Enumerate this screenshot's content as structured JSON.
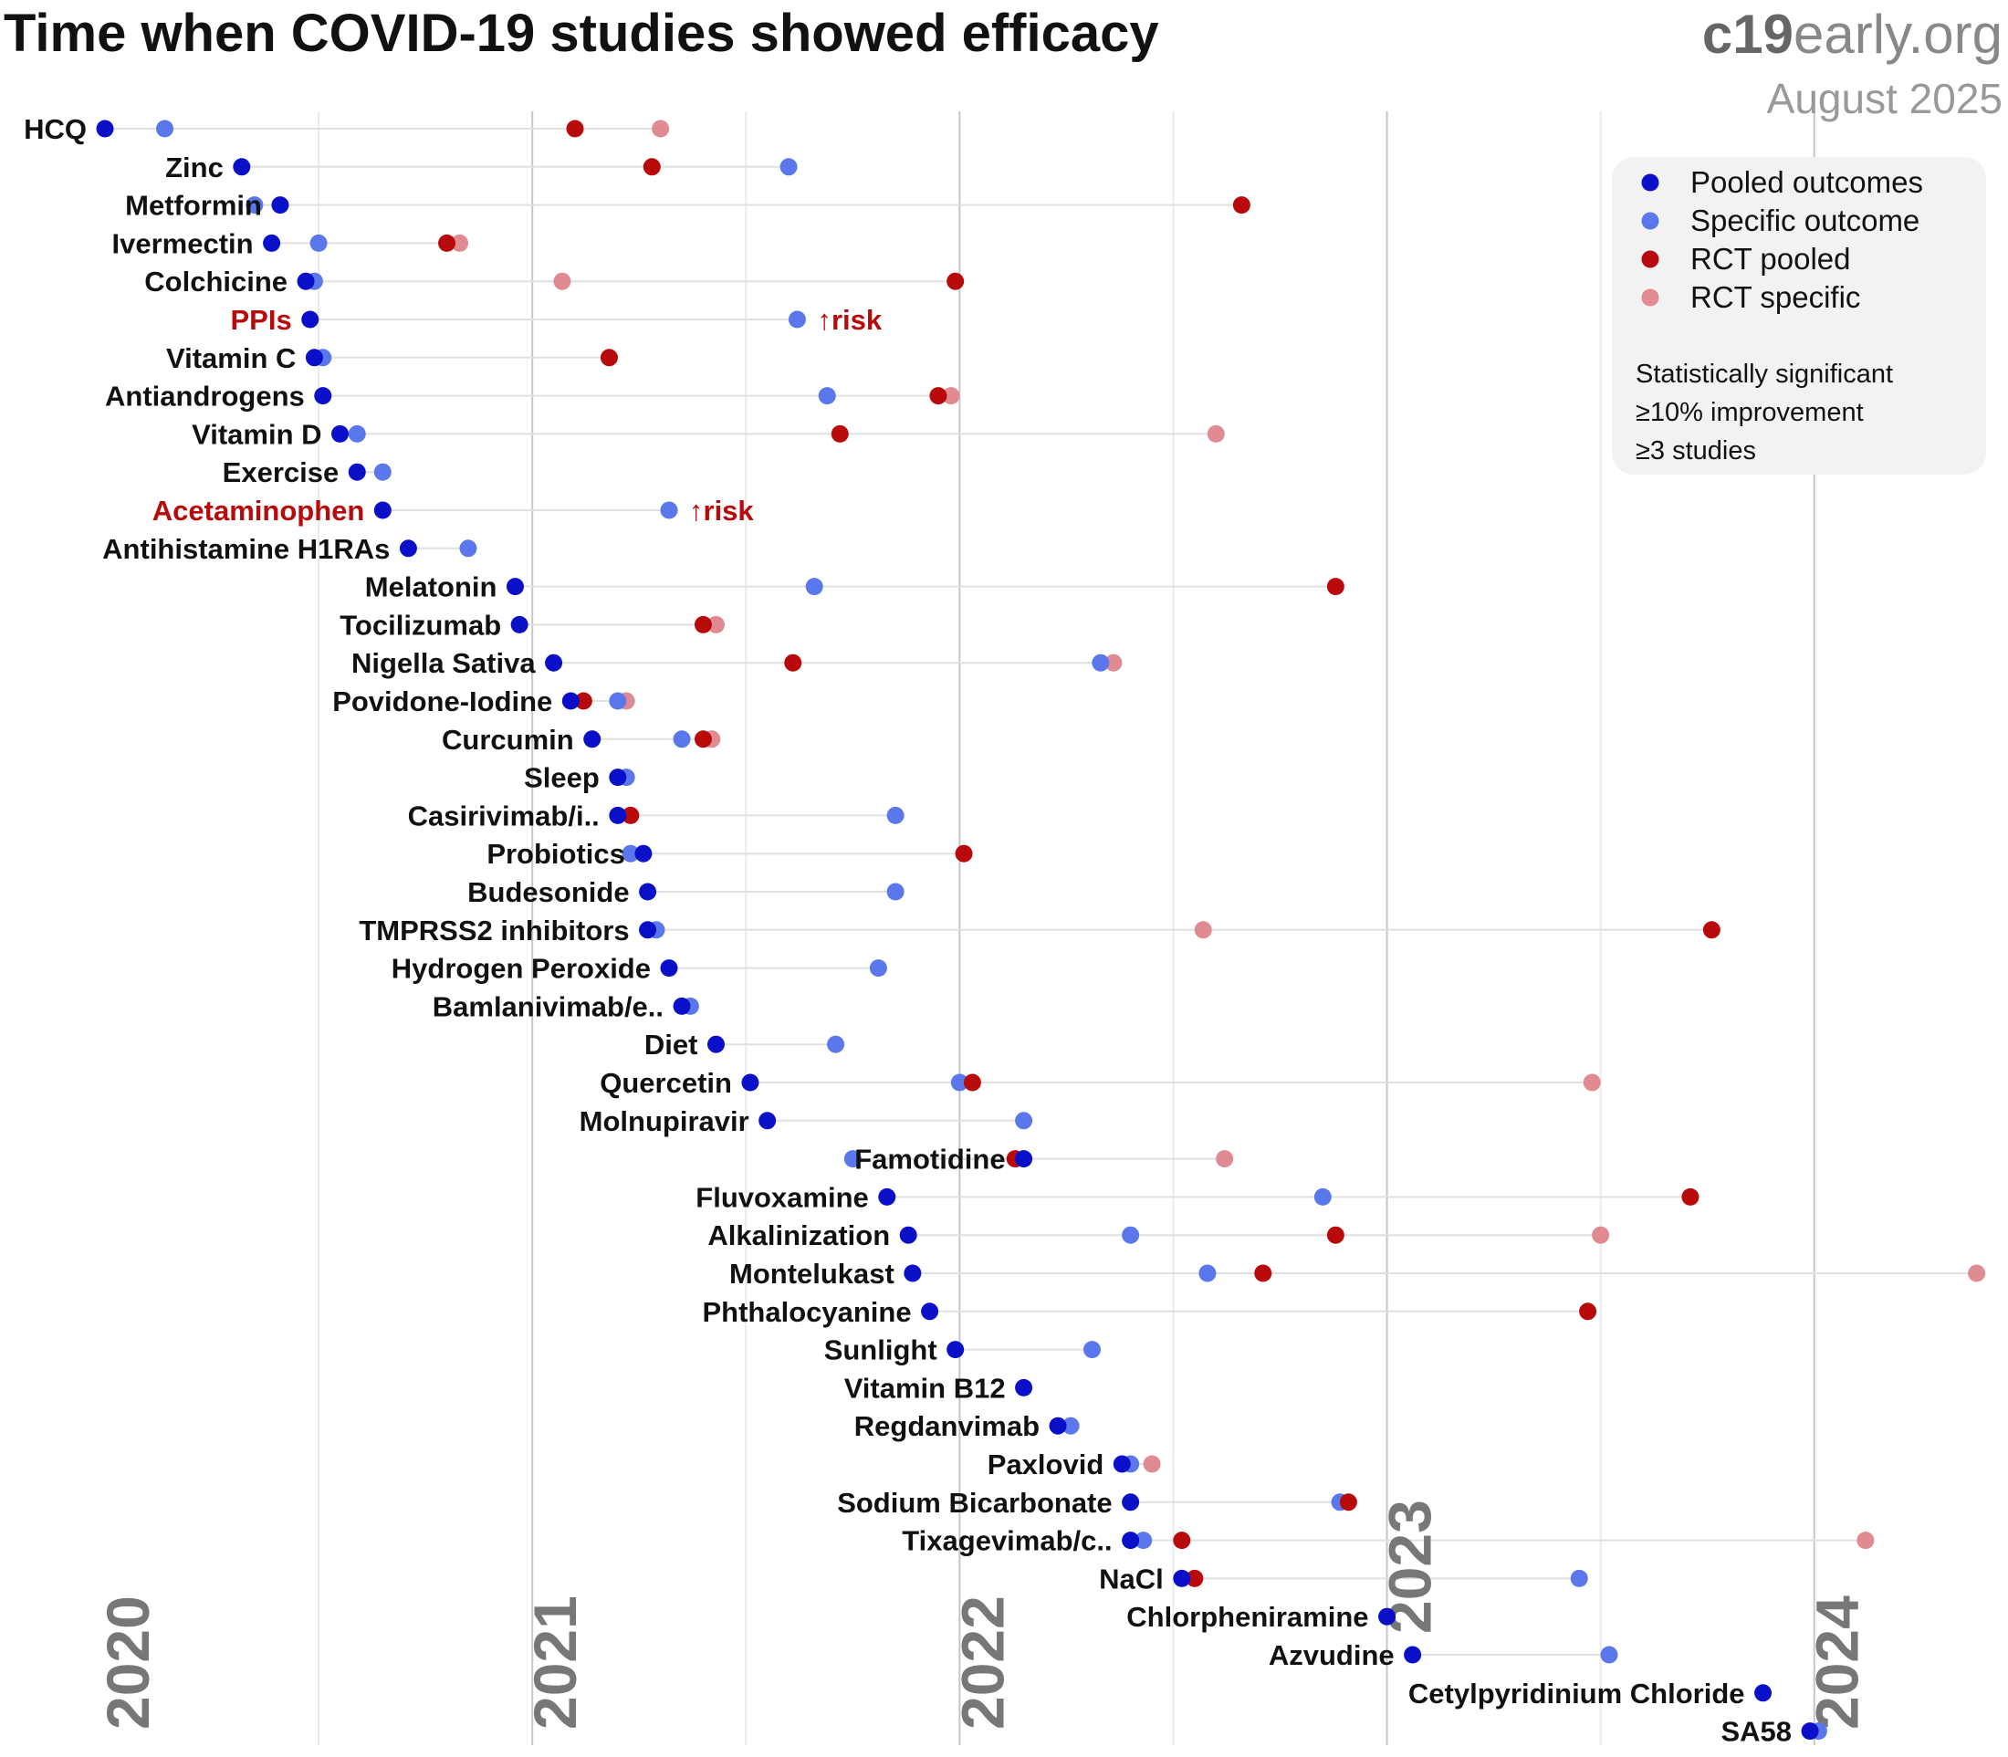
{
  "chart_data": {
    "type": "scatter",
    "title": "Time when COVID-19 studies showed efficacy",
    "brand": {
      "bold": "c19",
      "light": "early.org"
    },
    "subtitle": "August 2025",
    "x_range": [
      2020.0,
      2024.4
    ],
    "years": [
      {
        "label": "2020",
        "value": 2020.0
      },
      {
        "label": "2021",
        "value": 2021.0
      },
      {
        "label": "2022",
        "value": 2022.0
      },
      {
        "label": "2023",
        "value": 2023.0
      },
      {
        "label": "2024",
        "value": 2024.0
      }
    ],
    "half_years": [
      2020.5,
      2021.5,
      2022.5,
      2023.5
    ],
    "legend": {
      "items": [
        {
          "key": "pooled",
          "label": "Pooled outcomes",
          "color": "#0a10c8"
        },
        {
          "key": "specific",
          "label": "Specific outcome",
          "color": "#5a78ec"
        },
        {
          "key": "rct_pooled",
          "label": "RCT pooled",
          "color": "#b80a0a"
        },
        {
          "key": "rct_specific",
          "label": "RCT specific",
          "color": "#e08a92"
        }
      ],
      "notes": [
        "Statistically significant",
        "≥10% improvement",
        "≥3 studies"
      ]
    },
    "risk_label": "↑risk",
    "rows": [
      {
        "name": "HCQ",
        "pooled": 2020.0,
        "specific": 2020.14,
        "rct_pooled": 2021.1,
        "rct_specific": 2021.3
      },
      {
        "name": "Zinc",
        "pooled": 2020.32,
        "specific": 2021.6,
        "rct_pooled": 2021.28
      },
      {
        "name": "Metformin",
        "pooled": 2020.41,
        "specific": 2020.35,
        "rct_pooled": 2022.66
      },
      {
        "name": "Ivermectin",
        "pooled": 2020.39,
        "specific": 2020.5,
        "rct_pooled": 2020.8,
        "rct_specific": 2020.83
      },
      {
        "name": "Colchicine",
        "pooled": 2020.47,
        "specific": 2020.49,
        "rct_pooled": 2021.99,
        "rct_specific": 2021.07
      },
      {
        "name": "PPIs",
        "pooled": 2020.48,
        "specific": 2021.62,
        "risk": true
      },
      {
        "name": "Vitamin C",
        "pooled": 2020.49,
        "specific": 2020.51,
        "rct_pooled": 2021.18
      },
      {
        "name": "Antiandrogens",
        "pooled": 2020.51,
        "specific": 2021.69,
        "rct_pooled": 2021.95,
        "rct_specific": 2021.98
      },
      {
        "name": "Vitamin D",
        "pooled": 2020.55,
        "specific": 2020.59,
        "rct_pooled": 2021.72,
        "rct_specific": 2022.6
      },
      {
        "name": "Exercise",
        "pooled": 2020.59,
        "specific": 2020.65
      },
      {
        "name": "Acetaminophen",
        "pooled": 2020.65,
        "specific": 2021.32,
        "risk": true
      },
      {
        "name": "Antihistamine H1RAs",
        "pooled": 2020.71,
        "specific": 2020.85
      },
      {
        "name": "Melatonin",
        "pooled": 2020.96,
        "specific": 2021.66,
        "rct_pooled": 2022.88
      },
      {
        "name": "Tocilizumab",
        "pooled": 2020.97,
        "rct_pooled": 2021.4,
        "rct_specific": 2021.43
      },
      {
        "name": "Nigella Sativa",
        "pooled": 2021.05,
        "specific": 2022.33,
        "rct_pooled": 2021.61,
        "rct_specific": 2022.36
      },
      {
        "name": "Povidone-Iodine",
        "pooled": 2021.09,
        "specific": 2021.2,
        "rct_pooled": 2021.12,
        "rct_specific": 2021.22
      },
      {
        "name": "Curcumin",
        "pooled": 2021.14,
        "specific": 2021.35,
        "rct_pooled": 2021.4,
        "rct_specific": 2021.42
      },
      {
        "name": "Sleep",
        "pooled": 2021.2,
        "specific": 2021.22
      },
      {
        "name": "Casirivimab/i..",
        "pooled": 2021.2,
        "specific": 2021.85,
        "rct_pooled": 2021.23
      },
      {
        "name": "Probiotics",
        "pooled": 2021.26,
        "specific": 2021.23,
        "rct_pooled": 2022.01
      },
      {
        "name": "Budesonide",
        "pooled": 2021.27,
        "specific": 2021.85
      },
      {
        "name": "TMPRSS2 inhibitors",
        "pooled": 2021.27,
        "specific": 2021.29,
        "rct_pooled": 2023.76,
        "rct_specific": 2022.57
      },
      {
        "name": "Hydrogen Peroxide",
        "pooled": 2021.32,
        "specific": 2021.81
      },
      {
        "name": "Bamlanivimab/e..",
        "pooled": 2021.35,
        "specific": 2021.37
      },
      {
        "name": "Diet",
        "pooled": 2021.43,
        "specific": 2021.71
      },
      {
        "name": "Quercetin",
        "pooled": 2021.51,
        "specific": 2022.0,
        "rct_pooled": 2022.03,
        "rct_specific": 2023.48
      },
      {
        "name": "Molnupiravir",
        "pooled": 2021.55,
        "specific": 2022.15
      },
      {
        "name": "Famotidine",
        "pooled": 2022.15,
        "specific": 2021.75,
        "rct_pooled": 2022.13,
        "rct_specific": 2022.62
      },
      {
        "name": "Fluvoxamine",
        "pooled": 2021.83,
        "specific": 2022.85,
        "rct_pooled": 2023.71
      },
      {
        "name": "Alkalinization",
        "pooled": 2021.88,
        "specific": 2022.4,
        "rct_pooled": 2022.88,
        "rct_specific": 2023.5
      },
      {
        "name": "Montelukast",
        "pooled": 2021.89,
        "specific": 2022.58,
        "rct_pooled": 2022.71,
        "rct_specific": 2024.38
      },
      {
        "name": "Phthalocyanine",
        "pooled": 2021.93,
        "rct_pooled": 2023.47
      },
      {
        "name": "Sunlight",
        "pooled": 2021.99,
        "specific": 2022.31
      },
      {
        "name": "Vitamin B12",
        "pooled": 2022.15
      },
      {
        "name": "Regdanvimab",
        "pooled": 2022.23,
        "specific": 2022.26
      },
      {
        "name": "Paxlovid",
        "pooled": 2022.38,
        "specific": 2022.4,
        "rct_specific": 2022.45
      },
      {
        "name": "Sodium Bicarbonate",
        "pooled": 2022.4,
        "specific": 2022.89,
        "rct_pooled": 2022.91
      },
      {
        "name": "Tixagevimab/c..",
        "pooled": 2022.4,
        "specific": 2022.43,
        "rct_pooled": 2022.52,
        "rct_specific": 2024.12
      },
      {
        "name": "NaCl",
        "pooled": 2022.52,
        "specific": 2023.45,
        "rct_pooled": 2022.55
      },
      {
        "name": "Chlorpheniramine",
        "pooled": 2023.0
      },
      {
        "name": "Azvudine",
        "pooled": 2023.06,
        "specific": 2023.52
      },
      {
        "name": "Cetylpyridinium Chloride",
        "pooled": 2023.88
      },
      {
        "name": "SA58",
        "pooled": 2023.99,
        "specific": 2024.01
      }
    ]
  }
}
